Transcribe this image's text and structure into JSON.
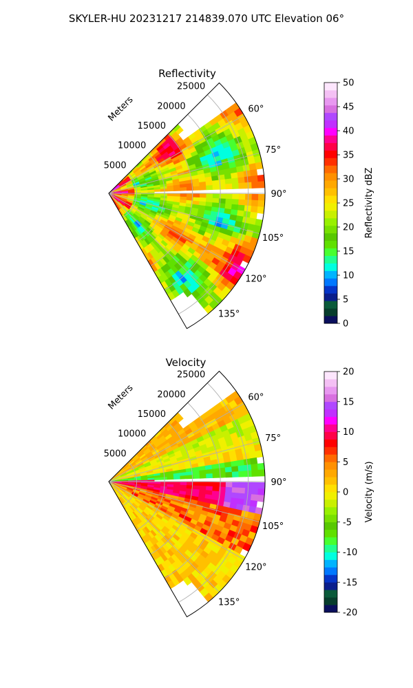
{
  "suptitle": "SKYLER-HU  20231217  214839.070 UTC Elevation 06°",
  "chart_data": [
    {
      "type": "heatmap",
      "title": "Reflectivity",
      "range_label": "Meters",
      "range_ticks": [
        "5000",
        "10000",
        "15000",
        "20000",
        "25000"
      ],
      "azimuth_ticks": [
        "60°",
        "75°",
        "90°",
        "105°",
        "120°",
        "135°"
      ],
      "colorbar": {
        "label": "Reflectivity dBZ",
        "min": 0,
        "max": 50,
        "ticks": [
          "0",
          "5",
          "10",
          "15",
          "20",
          "25",
          "30",
          "35",
          "40",
          "45",
          "50"
        ],
        "colors": [
          "#0a0f5c",
          "#073d2c",
          "#0a5a3a",
          "#0a1e8c",
          "#0535c8",
          "#0078ff",
          "#00b4ff",
          "#00ffe0",
          "#20ff90",
          "#48ff30",
          "#60e000",
          "#58c800",
          "#78e000",
          "#98f000",
          "#c8f000",
          "#f0f000",
          "#ffe000",
          "#ffc000",
          "#ffa800",
          "#ff9000",
          "#ff6a00",
          "#ff3000",
          "#ff0000",
          "#ff0048",
          "#ff0090",
          "#ff00ff",
          "#c030ff",
          "#b048ff",
          "#d870e0",
          "#e898f0",
          "#f4c0f4",
          "#fde6fd"
        ]
      }
    },
    {
      "type": "heatmap",
      "title": "Velocity",
      "range_label": "Meters",
      "range_ticks": [
        "5000",
        "10000",
        "15000",
        "20000",
        "25000"
      ],
      "azimuth_ticks": [
        "60°",
        "75°",
        "90°",
        "105°",
        "120°",
        "135°"
      ],
      "colorbar": {
        "label": "Velocity (m/s)",
        "min": -20,
        "max": 20,
        "ticks": [
          "-20",
          "-15",
          "-10",
          "-5",
          "0",
          "5",
          "10",
          "15",
          "20"
        ],
        "colors": [
          "#0a0f5c",
          "#073d2c",
          "#0a5a3a",
          "#0a1e8c",
          "#0535c8",
          "#0078ff",
          "#00b4ff",
          "#00ffe0",
          "#20ff90",
          "#48ff30",
          "#60e000",
          "#58c800",
          "#78e000",
          "#98f000",
          "#c8f000",
          "#f0f000",
          "#ffe000",
          "#ffc000",
          "#ffa800",
          "#ff9000",
          "#ff6a00",
          "#ff3000",
          "#ff0000",
          "#ff0048",
          "#ff0090",
          "#ff00ff",
          "#c030ff",
          "#b048ff",
          "#d870e0",
          "#e898f0",
          "#f4c0f4",
          "#fde6fd"
        ]
      }
    }
  ]
}
